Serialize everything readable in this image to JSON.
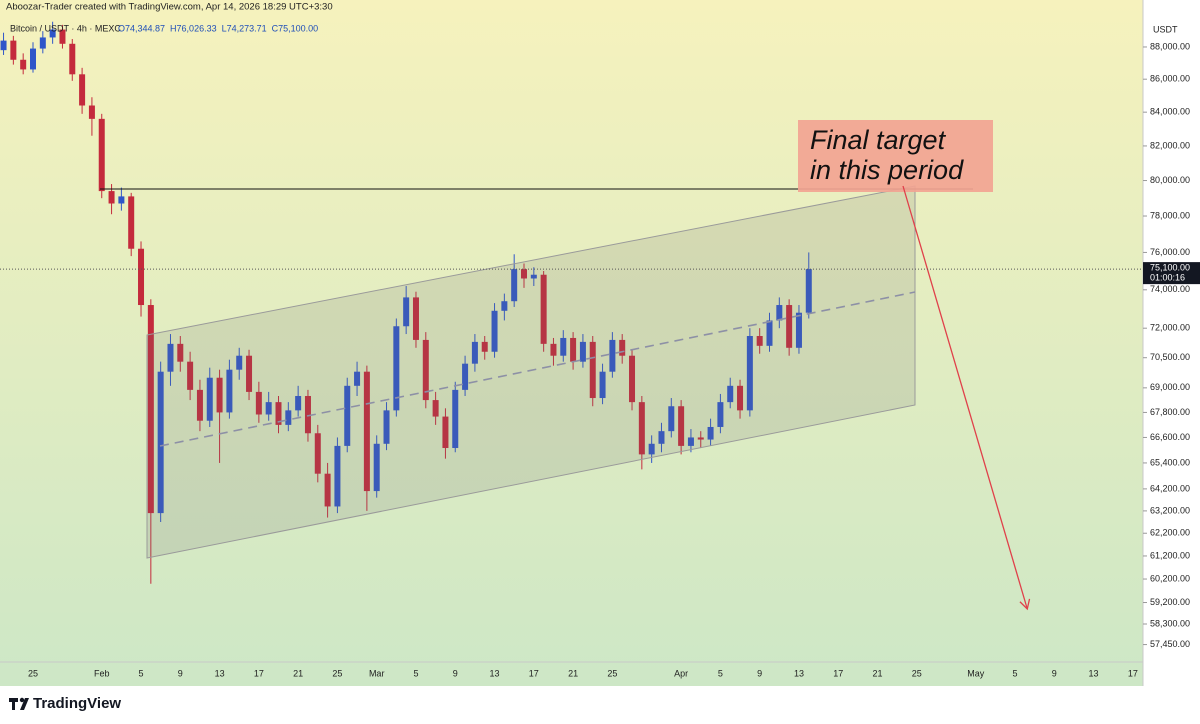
{
  "chart_data": {
    "type": "candlestick",
    "attribution": "Aboozar-Trader created with TradingView.com, Apr 14, 2026 18:29 UTC+3:30",
    "symbol": "Bitcoin / USDT · 4h · MEXC",
    "legend_ohlc": [
      "O74,344.87",
      "H76,026.33",
      "L74,273.71",
      "C75,100.00"
    ],
    "y_unit": "USDT",
    "last_price": {
      "value": 75100,
      "label": "75,100.00"
    },
    "countdown": "01:00:16",
    "annotation": [
      "Final target",
      "in this period"
    ],
    "brand": "TradingView",
    "log_scale": true,
    "up_color": "#2f56c9",
    "down_color": "#c42a3c",
    "ylim": [
      56740,
      89710
    ],
    "yticks": [
      {
        "value": 57450,
        "label": "57,450.00"
      },
      {
        "value": 58300,
        "label": "58,300.00"
      },
      {
        "value": 59200,
        "label": "59,200.00"
      },
      {
        "value": 60200,
        "label": "60,200.00"
      },
      {
        "value": 61200,
        "label": "61,200.00"
      },
      {
        "value": 62200,
        "label": "62,200.00"
      },
      {
        "value": 63200,
        "label": "63,200.00"
      },
      {
        "value": 64200,
        "label": "64,200.00"
      },
      {
        "value": 65400,
        "label": "65,400.00"
      },
      {
        "value": 66600,
        "label": "66,600.00"
      },
      {
        "value": 67800,
        "label": "67,800.00"
      },
      {
        "value": 69000,
        "label": "69,000.00"
      },
      {
        "value": 70500,
        "label": "70,500.00"
      },
      {
        "value": 72000,
        "label": "72,000.00"
      },
      {
        "value": 74000,
        "label": "74,000.00"
      },
      {
        "value": 76000,
        "label": "76,000.00"
      },
      {
        "value": 78000,
        "label": "78,000.00"
      },
      {
        "value": 80000,
        "label": "80,000.00"
      },
      {
        "value": 82000,
        "label": "82,000.00"
      },
      {
        "value": 84000,
        "label": "84,000.00"
      },
      {
        "value": 86000,
        "label": "86,000.00"
      },
      {
        "value": 88000,
        "label": "88,000.00"
      }
    ],
    "categories": [
      null,
      null,
      null,
      null,
      "25",
      null,
      null,
      null,
      null,
      null,
      null,
      "Feb",
      null,
      null,
      null,
      "5",
      null,
      null,
      null,
      "9",
      null,
      null,
      null,
      "13",
      null,
      null,
      null,
      "17",
      null,
      null,
      null,
      "21",
      null,
      null,
      null,
      "25",
      null,
      null,
      null,
      "Mar",
      null,
      null,
      null,
      "5",
      null,
      null,
      null,
      "9",
      null,
      null,
      null,
      "13",
      null,
      null,
      null,
      "17",
      null,
      null,
      null,
      "21",
      null,
      null,
      null,
      "25",
      null,
      null,
      null,
      null,
      null,
      null,
      "Apr",
      null,
      null,
      null,
      "5",
      null,
      null,
      null,
      "9",
      null,
      null,
      null,
      "13",
      null,
      null,
      null,
      "17",
      null,
      null,
      null,
      "21",
      null,
      null,
      null,
      "25",
      null,
      null,
      null,
      null,
      null,
      "May",
      null,
      null,
      null,
      "5",
      null,
      null,
      null,
      "9",
      null,
      null,
      null,
      "13",
      null,
      null,
      null,
      "17"
    ],
    "open": [
      88300,
      87800,
      88400,
      87200,
      86600,
      87900,
      88600,
      89100,
      88200,
      86300,
      84400,
      83600,
      79400,
      78700,
      79100,
      76200,
      73200,
      63100,
      69800,
      71200,
      70300,
      68900,
      67400,
      69500,
      67800,
      69900,
      70600,
      68800,
      67700,
      68300,
      67200,
      67900,
      68600,
      66800,
      64900,
      63400,
      66200,
      69100,
      69800,
      64100,
      66300,
      67900,
      72100,
      73600,
      71400,
      68400,
      67600,
      66100,
      68900,
      70200,
      71300,
      70800,
      72900,
      73400,
      75100,
      74600,
      74800,
      71200,
      70600,
      71500,
      70300,
      71300,
      68500,
      69800,
      71400,
      70600,
      68300,
      65800,
      66300,
      66900,
      68100,
      66200,
      66600,
      66500,
      67100,
      68300,
      69100,
      67900,
      71600,
      71100,
      72400,
      73200,
      71000,
      72800,
      null,
      null,
      null,
      null,
      null,
      null,
      null,
      null,
      null,
      null,
      null,
      null,
      null,
      null,
      null,
      null,
      null,
      null,
      null,
      null,
      null,
      null,
      null,
      null,
      null,
      null,
      null,
      null,
      null,
      null,
      null,
      null,
      null
    ],
    "high": [
      89000,
      88900,
      88700,
      87600,
      88300,
      89000,
      89600,
      89400,
      88500,
      86700,
      84900,
      83900,
      79800,
      79600,
      79300,
      76600,
      73500,
      70300,
      71700,
      71600,
      70800,
      69400,
      70000,
      69900,
      70400,
      71000,
      70900,
      69300,
      68800,
      68600,
      68300,
      69100,
      68900,
      67200,
      65400,
      66600,
      69500,
      70300,
      70100,
      66700,
      68300,
      72500,
      74200,
      73900,
      71800,
      68800,
      68000,
      69300,
      70600,
      71700,
      71600,
      73300,
      73800,
      75900,
      75400,
      75200,
      75000,
      71500,
      71900,
      71800,
      71700,
      71600,
      70200,
      71800,
      71700,
      70900,
      68600,
      66700,
      67300,
      68500,
      68400,
      67000,
      66900,
      67500,
      68700,
      69500,
      69400,
      72000,
      72000,
      72800,
      73600,
      73500,
      73200,
      76000,
      null,
      null,
      null,
      null,
      null,
      null,
      null,
      null,
      null,
      null,
      null,
      null,
      null,
      null,
      null,
      null,
      null,
      null,
      null,
      null,
      null,
      null,
      null,
      null,
      null,
      null,
      null,
      null,
      null,
      null,
      null,
      null,
      null
    ],
    "low": [
      87400,
      87500,
      86900,
      86300,
      86400,
      87600,
      88200,
      87900,
      85900,
      83900,
      82600,
      79000,
      78100,
      78300,
      75800,
      72600,
      60000,
      62700,
      69100,
      69800,
      68400,
      66900,
      67100,
      65400,
      67500,
      69400,
      68400,
      67300,
      67400,
      66800,
      66900,
      67600,
      66400,
      64500,
      62900,
      63100,
      65900,
      68600,
      63200,
      63800,
      66000,
      67600,
      71700,
      71000,
      68000,
      67200,
      65600,
      65900,
      68600,
      69800,
      70400,
      70500,
      72400,
      73100,
      74100,
      74200,
      70800,
      70100,
      70300,
      69900,
      70000,
      68100,
      68200,
      69500,
      70200,
      67900,
      65100,
      65400,
      65900,
      66600,
      65800,
      65900,
      66100,
      66200,
      66800,
      68000,
      67500,
      67600,
      70700,
      70800,
      72000,
      70600,
      70700,
      72500,
      null,
      null,
      null,
      null,
      null,
      null,
      null,
      null,
      null,
      null,
      null,
      null,
      null,
      null,
      null,
      null,
      null,
      null,
      null,
      null,
      null,
      null,
      null,
      null,
      null,
      null,
      null,
      null,
      null,
      null,
      null,
      null,
      null
    ],
    "close": [
      87800,
      88400,
      87200,
      86600,
      87900,
      88600,
      89100,
      88200,
      86300,
      84400,
      83600,
      79400,
      78700,
      79100,
      76200,
      73200,
      63100,
      69800,
      71200,
      70300,
      68900,
      67400,
      69500,
      67800,
      69900,
      70600,
      68800,
      67700,
      68300,
      67200,
      67900,
      68600,
      66800,
      64900,
      63400,
      66200,
      69100,
      69800,
      64100,
      66300,
      67900,
      72100,
      73600,
      71400,
      68400,
      67600,
      66100,
      68900,
      70200,
      71300,
      70800,
      72900,
      73400,
      75100,
      74600,
      74800,
      71200,
      70600,
      71500,
      70300,
      71300,
      68500,
      69800,
      71400,
      70600,
      68300,
      65800,
      66300,
      66900,
      68100,
      66200,
      66600,
      66500,
      67100,
      68300,
      69100,
      67900,
      71600,
      71100,
      72400,
      73200,
      71000,
      72800,
      75100,
      null,
      null,
      null,
      null,
      null,
      null,
      null,
      null,
      null,
      null,
      null,
      null,
      null,
      null,
      null,
      null,
      null,
      null,
      null,
      null,
      null,
      null,
      null,
      null,
      null,
      null,
      null,
      null,
      null,
      null,
      null,
      null,
      null
    ]
  }
}
